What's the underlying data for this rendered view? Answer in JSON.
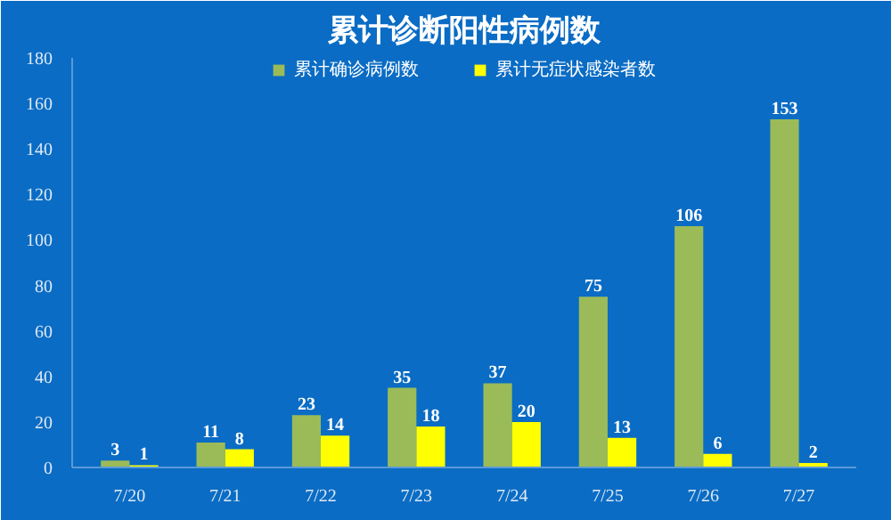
{
  "chart_data": {
    "type": "bar",
    "title": "累计诊断阳性病例数",
    "categories": [
      "7/20",
      "7/21",
      "7/22",
      "7/23",
      "7/24",
      "7/25",
      "7/26",
      "7/27"
    ],
    "series": [
      {
        "name": "累计确诊病例数",
        "color": "#9bbb59",
        "values": [
          3,
          11,
          23,
          35,
          37,
          75,
          106,
          153
        ]
      },
      {
        "name": "累计无症状感染者数",
        "color": "#ffff00",
        "values": [
          1,
          8,
          14,
          18,
          20,
          13,
          6,
          2
        ]
      }
    ],
    "ylim": [
      0,
      180
    ],
    "yticks": [
      0,
      20,
      40,
      60,
      80,
      100,
      120,
      140,
      160,
      180
    ],
    "grid": false,
    "legend": "top",
    "data_labels": true
  }
}
